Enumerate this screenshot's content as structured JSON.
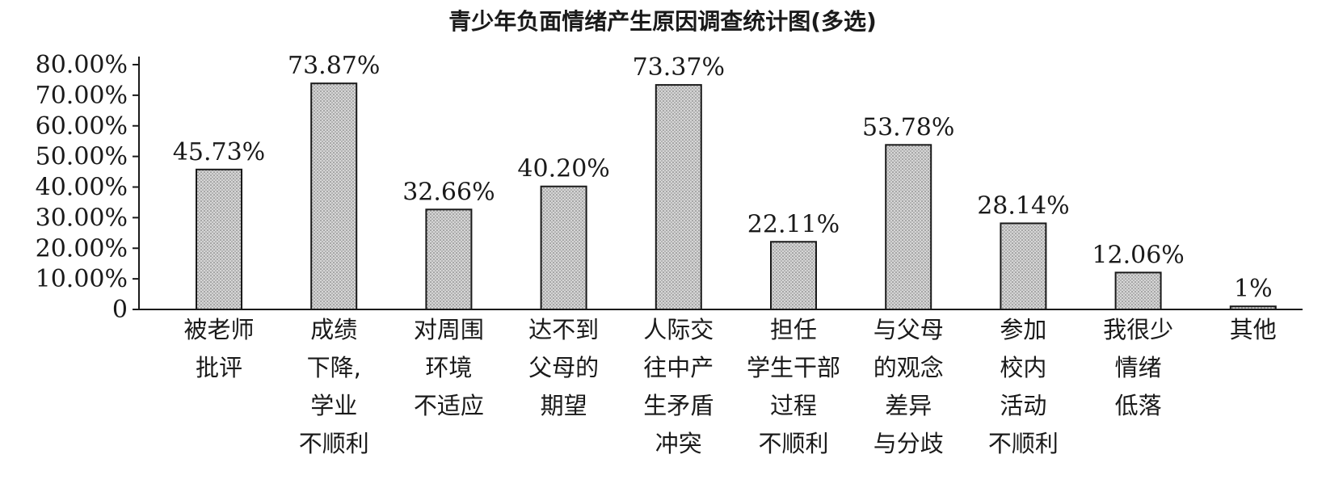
{
  "chart_data": {
    "type": "bar",
    "title": "青少年负面情绪产生原因调查统计图(多选)",
    "xlabel": "",
    "ylabel": "",
    "ylim": [
      0,
      80
    ],
    "yticks": [
      "0",
      "10.00%",
      "20.00%",
      "30.00%",
      "40.00%",
      "50.00%",
      "60.00%",
      "70.00%",
      "80.00%"
    ],
    "grid": false,
    "categories": [
      [
        "被老师",
        "批评"
      ],
      [
        "成绩",
        "下降,",
        "学业",
        "不顺利"
      ],
      [
        "对周围",
        "环境",
        "不适应"
      ],
      [
        "达不到",
        "父母的",
        "期望"
      ],
      [
        "人际交",
        "往中产",
        "生矛盾",
        "冲突"
      ],
      [
        "担任",
        "学生干部",
        "过程",
        "不顺利"
      ],
      [
        "与父母",
        "的观念",
        "差异",
        "与分歧"
      ],
      [
        "参加",
        "校内",
        "活动",
        "不顺利"
      ],
      [
        "我很少",
        "情绪",
        "低落"
      ],
      [
        "其他"
      ]
    ],
    "values": [
      45.73,
      73.87,
      32.66,
      40.2,
      73.37,
      22.11,
      53.78,
      28.14,
      12.06,
      1
    ],
    "value_labels": [
      "45.73%",
      "73.87%",
      "32.66%",
      "40.20%",
      "73.37%",
      "22.11%",
      "53.78%",
      "28.14%",
      "12.06%",
      "1%"
    ],
    "bar_pattern": "dotted-gray"
  }
}
